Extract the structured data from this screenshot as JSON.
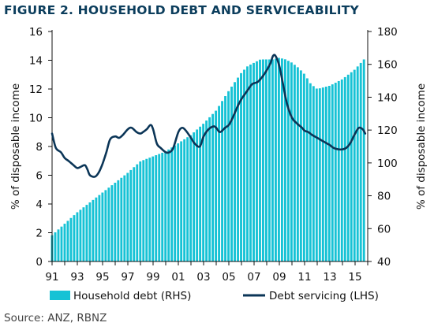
{
  "title": "FIGURE 2. HOUSEHOLD DEBT AND SERVICEABILITY",
  "source": "Source: ANZ, RBNZ",
  "colors": {
    "bars": "#16c2d5",
    "line": "#0b3557",
    "title": "#0b3d5c"
  },
  "chart_data": {
    "type": "bar+line",
    "x_tick_labels": [
      "91",
      "93",
      "95",
      "97",
      "99",
      "01",
      "03",
      "05",
      "07",
      "09",
      "11",
      "13",
      "15"
    ],
    "y_left": {
      "label": "% of disposable income",
      "ticks": [
        0,
        2,
        4,
        6,
        8,
        10,
        12,
        14,
        16
      ],
      "range": [
        0,
        16
      ]
    },
    "y_right": {
      "label": "% of disposable income",
      "ticks": [
        40,
        60,
        80,
        100,
        120,
        140,
        160,
        180
      ],
      "range": [
        40,
        180
      ]
    },
    "grid": false,
    "legend_position": "bottom",
    "series": [
      {
        "name": "Household debt (RHS)",
        "type": "bar",
        "axis": "right",
        "x": [
          1991.0,
          1992.0,
          1993.0,
          1994.0,
          1995.0,
          1996.0,
          1997.0,
          1998.0,
          1999.0,
          2000.0,
          2001.0,
          2002.0,
          2003.0,
          2004.0,
          2005.0,
          2006.0,
          2006.5,
          2007.0,
          2007.5,
          2008.0,
          2008.5,
          2009.0,
          2009.5,
          2010.0,
          2010.5,
          2011.0,
          2011.5,
          2012.0,
          2013.0,
          2014.0,
          2015.0,
          2015.7
        ],
        "values": [
          56,
          63,
          70,
          76,
          82,
          88,
          94,
          101,
          104,
          107,
          112,
          117,
          124,
          132,
          144,
          155,
          159,
          161,
          163,
          163,
          163,
          164,
          163,
          161,
          158,
          154,
          148,
          145,
          147,
          151,
          157,
          163
        ]
      },
      {
        "name": "Debt servicing (LHS)",
        "type": "line",
        "axis": "left",
        "x": [
          1991.0,
          1991.3,
          1991.7,
          1992.0,
          1992.3,
          1992.7,
          1993.0,
          1993.3,
          1993.6,
          1993.8,
          1994.0,
          1994.4,
          1994.7,
          1995.0,
          1995.3,
          1995.6,
          1996.0,
          1996.3,
          1996.6,
          1997.0,
          1997.3,
          1997.7,
          1998.0,
          1998.2,
          1998.5,
          1998.8,
          1999.0,
          1999.3,
          1999.6,
          2000.0,
          2000.3,
          2000.6,
          2001.0,
          2001.3,
          2001.6,
          2002.0,
          2002.3,
          2002.7,
          2003.0,
          2003.4,
          2003.8,
          2004.0,
          2004.3,
          2004.7,
          2005.0,
          2005.3,
          2005.7,
          2006.0,
          2006.4,
          2006.8,
          2007.0,
          2007.3,
          2007.7,
          2008.0,
          2008.3,
          2008.5,
          2008.7,
          2009.0,
          2009.3,
          2009.6,
          2010.0,
          2010.4,
          2010.8,
          2011.0,
          2011.3,
          2011.6,
          2012.0,
          2012.4,
          2012.8,
          2013.0,
          2013.3,
          2013.7,
          2014.0,
          2014.3,
          2014.6,
          2015.0,
          2015.3,
          2015.6,
          2015.8
        ],
        "values": [
          8.9,
          7.9,
          7.6,
          7.2,
          7.0,
          6.7,
          6.5,
          6.6,
          6.7,
          6.4,
          6.0,
          5.9,
          6.2,
          6.8,
          7.6,
          8.5,
          8.7,
          8.6,
          8.8,
          9.2,
          9.3,
          9.0,
          8.9,
          9.0,
          9.2,
          9.5,
          9.2,
          8.2,
          7.9,
          7.6,
          7.6,
          7.9,
          9.0,
          9.3,
          9.1,
          8.6,
          8.2,
          8.0,
          8.7,
          9.2,
          9.4,
          9.3,
          9.0,
          9.3,
          9.5,
          10.0,
          10.8,
          11.3,
          11.8,
          12.3,
          12.4,
          12.5,
          12.9,
          13.3,
          13.8,
          14.3,
          14.3,
          13.6,
          12.3,
          11.0,
          10.0,
          9.6,
          9.3,
          9.1,
          9.0,
          8.8,
          8.6,
          8.4,
          8.2,
          8.1,
          7.9,
          7.8,
          7.8,
          7.9,
          8.2,
          8.9,
          9.3,
          9.2,
          8.9
        ]
      }
    ]
  }
}
